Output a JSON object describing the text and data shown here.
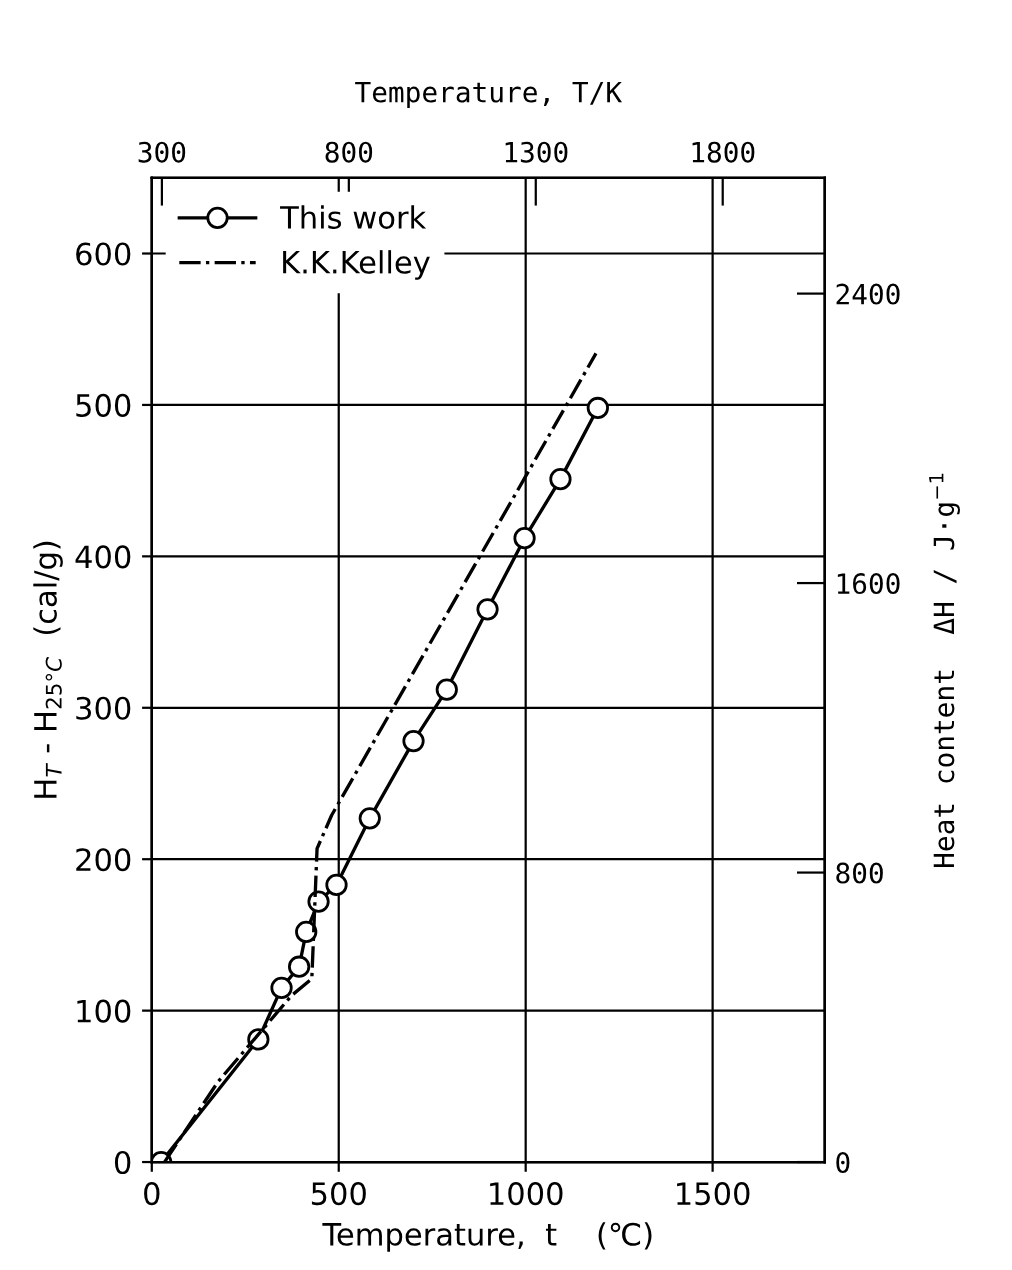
{
  "chart_data": {
    "type": "line",
    "xlabel": "Temperature,  t    (℃)",
    "ylabel": "H$_{T}$ - H$_{25°C}$  (cal/g)",
    "y2label": "Heat content  ΔH / J·g$^{−1}$",
    "x2label": "Temperature, T/K",
    "xlim": [
      0,
      1800
    ],
    "xticks": [
      0,
      500,
      1000,
      1500
    ],
    "ylim": [
      0,
      650
    ],
    "yticks": [
      0,
      100,
      200,
      300,
      400,
      500,
      600
    ],
    "x2lim": [
      273,
      2073
    ],
    "x2ticks": [
      300,
      800,
      1300,
      1800
    ],
    "y2lim": [
      0,
      2720
    ],
    "y2ticks": [
      0,
      800,
      1600,
      2400
    ],
    "grid": true,
    "legend": "top left",
    "series": [
      {
        "name": "This work",
        "color": "#000000",
        "marker": "circle",
        "line_style": "solid",
        "x": [
          25,
          285,
          347,
          394,
          413,
          446,
          494,
          583,
          700,
          789,
          898,
          997,
          1093,
          1193
        ],
        "values": [
          0,
          81,
          115,
          129,
          152,
          172,
          183,
          227,
          278,
          312,
          365,
          412,
          451,
          498
        ]
      },
      {
        "name": "K.K.Kelley",
        "color": "#000000",
        "marker": "none",
        "line_style": "dashdot",
        "x": [
          34,
          177,
          374,
          428,
          442,
          481,
          1188
        ],
        "values": [
          0,
          53,
          110,
          121,
          207,
          229,
          534
        ]
      }
    ]
  }
}
